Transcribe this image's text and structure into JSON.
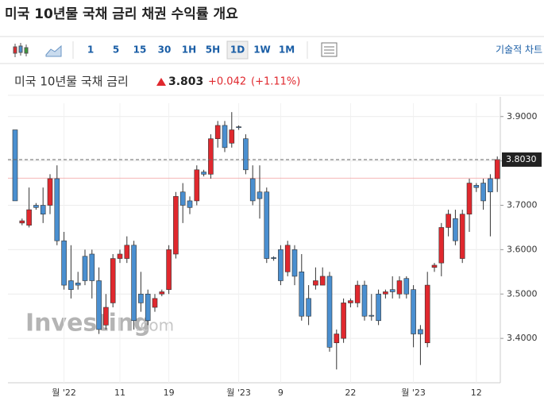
{
  "header": {
    "title": "미국 10년물 국채 금리  채권 수익률 개요"
  },
  "toolbar": {
    "buttons": [
      "1",
      "5",
      "15",
      "30",
      "1H",
      "5H",
      "1D",
      "1W",
      "1M"
    ],
    "active": "1D",
    "technical": "기술적 차트"
  },
  "quote": {
    "name": "미국 10년물 국채 금리",
    "price": 3.803,
    "change": "+0.042",
    "change_pct": "(+1.11%)"
  },
  "watermark": {
    "brand": "Investing",
    "suffix": ".com"
  },
  "chart_data": {
    "type": "candlestick",
    "categories": [
      null,
      null,
      null,
      null,
      null,
      null,
      null,
      "월 '22",
      null,
      null,
      null,
      null,
      null,
      null,
      null,
      "11",
      null,
      null,
      null,
      null,
      null,
      null,
      "19",
      null,
      null,
      null,
      null,
      null,
      null,
      null,
      null,
      null,
      "월 '23",
      null,
      null,
      null,
      null,
      null,
      "9",
      null,
      null,
      null,
      null,
      null,
      null,
      null,
      null,
      null,
      "22",
      null,
      null,
      null,
      null,
      null,
      null,
      null,
      null,
      "월 '23",
      null,
      null,
      null,
      null,
      null,
      null,
      null,
      null,
      "12",
      null,
      null,
      null
    ],
    "open": [
      3.87,
      3.66,
      3.655,
      3.7,
      3.7,
      3.7,
      3.76,
      3.62,
      3.53,
      3.525,
      3.585,
      3.59,
      3.53,
      3.43,
      3.48,
      3.58,
      3.58,
      3.61,
      3.5,
      3.5,
      3.47,
      3.5,
      3.51,
      3.59,
      3.73,
      3.71,
      3.71,
      3.775,
      3.77,
      3.85,
      3.88,
      3.84,
      3.877,
      3.85,
      3.76,
      3.73,
      3.73,
      3.582,
      3.6,
      3.55,
      3.6,
      3.55,
      3.49,
      3.52,
      3.52,
      3.54,
      3.39,
      3.4,
      3.48,
      3.48,
      3.52,
      3.452,
      3.5,
      3.5,
      3.51,
      3.5,
      3.535,
      3.51,
      3.42,
      3.39,
      3.56,
      3.57,
      3.65,
      3.67,
      3.58,
      3.68,
      3.745,
      3.75,
      3.76,
      3.76
    ],
    "high": [
      3.87,
      3.67,
      3.74,
      3.705,
      3.74,
      3.77,
      3.79,
      3.64,
      3.61,
      3.55,
      3.6,
      3.6,
      3.56,
      3.5,
      3.59,
      3.6,
      3.63,
      3.62,
      3.55,
      3.51,
      3.5,
      3.51,
      3.61,
      3.73,
      3.75,
      3.72,
      3.79,
      3.78,
      3.86,
      3.89,
      3.89,
      3.91,
      3.88,
      3.86,
      3.79,
      3.79,
      3.74,
      3.585,
      3.61,
      3.62,
      3.61,
      3.59,
      3.52,
      3.56,
      3.56,
      3.55,
      3.42,
      3.49,
      3.49,
      3.53,
      3.53,
      3.5,
      3.51,
      3.51,
      3.54,
      3.54,
      3.54,
      3.52,
      3.43,
      3.55,
      3.57,
      3.66,
      3.69,
      3.69,
      3.69,
      3.76,
      3.75,
      3.76,
      3.77,
      3.81
    ],
    "low": [
      3.71,
      3.655,
      3.65,
      3.69,
      3.66,
      3.68,
      3.61,
      3.51,
      3.49,
      3.51,
      3.52,
      3.49,
      3.41,
      3.42,
      3.47,
      3.57,
      3.57,
      3.42,
      3.46,
      3.43,
      3.46,
      3.495,
      3.5,
      3.58,
      3.66,
      3.68,
      3.7,
      3.765,
      3.76,
      3.83,
      3.82,
      3.83,
      3.87,
      3.77,
      3.7,
      3.67,
      3.57,
      3.575,
      3.52,
      3.54,
      3.52,
      3.44,
      3.43,
      3.51,
      3.52,
      3.37,
      3.33,
      3.39,
      3.47,
      3.47,
      3.44,
      3.44,
      3.43,
      3.49,
      3.49,
      3.49,
      3.49,
      3.38,
      3.34,
      3.38,
      3.55,
      3.54,
      3.63,
      3.61,
      3.57,
      3.64,
      3.73,
      3.69,
      3.63,
      3.73
    ],
    "close": [
      3.71,
      3.665,
      3.69,
      3.695,
      3.68,
      3.76,
      3.62,
      3.52,
      3.51,
      3.52,
      3.53,
      3.53,
      3.42,
      3.47,
      3.58,
      3.59,
      3.61,
      3.44,
      3.48,
      3.44,
      3.49,
      3.505,
      3.6,
      3.72,
      3.7,
      3.695,
      3.78,
      3.77,
      3.85,
      3.88,
      3.83,
      3.87,
      3.875,
      3.78,
      3.71,
      3.715,
      3.58,
      3.58,
      3.53,
      3.61,
      3.54,
      3.45,
      3.45,
      3.53,
      3.54,
      3.38,
      3.41,
      3.48,
      3.485,
      3.52,
      3.45,
      3.45,
      3.44,
      3.505,
      3.505,
      3.53,
      3.5,
      3.41,
      3.41,
      3.52,
      3.565,
      3.65,
      3.68,
      3.62,
      3.68,
      3.75,
      3.74,
      3.71,
      3.73,
      3.803
    ],
    "up_color": "#e0282e",
    "down_color": "#4a8fd0",
    "ylim": [
      3.3,
      3.93
    ],
    "yticks": [
      {
        "value": 3.9,
        "label": "3.9000"
      },
      {
        "value": 3.8,
        "label": "3.8000"
      },
      {
        "value": 3.7,
        "label": "3.7000"
      },
      {
        "value": 3.6,
        "label": "3.6000"
      },
      {
        "value": 3.5,
        "label": "3.5000"
      },
      {
        "value": 3.4,
        "label": "3.4000"
      }
    ],
    "last_price": {
      "value": 3.803,
      "label": "3.8030"
    },
    "previous_close": 3.761,
    "grid": true
  }
}
